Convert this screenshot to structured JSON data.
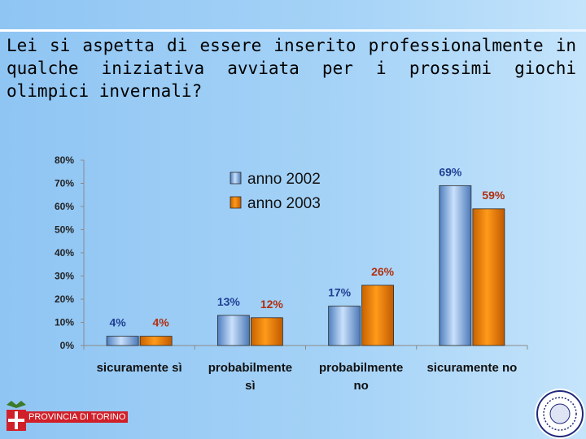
{
  "slide": {
    "question": "Lei si aspetta di essere inserito professionalmente in qualche iniziativa avviata per i prossimi giochi olimpici invernali?"
  },
  "logo": {
    "left_text": "PROVINCIA DI TORINO"
  },
  "colors": {
    "series_2002": "#6f9fd6",
    "series_2003": "#e98500",
    "label_2002": "#1f3f93",
    "label_2003": "#b03010"
  },
  "chart_data": {
    "type": "bar",
    "categories": [
      "sicuramente sì",
      "probabilmente sì",
      "probabilmente no",
      "sicuramente no"
    ],
    "series": [
      {
        "name": "anno 2002",
        "values": [
          4,
          13,
          17,
          69
        ]
      },
      {
        "name": "anno 2003",
        "values": [
          4,
          12,
          26,
          59
        ]
      }
    ],
    "data_labels": [
      [
        "4%",
        "13%",
        "17%",
        "69%"
      ],
      [
        "4%",
        "12%",
        "26%",
        "59%"
      ]
    ],
    "yticks": [
      "0%",
      "10%",
      "20%",
      "30%",
      "40%",
      "50%",
      "60%",
      "70%",
      "80%"
    ],
    "ylim": [
      0,
      80
    ],
    "legend_position": "top-center",
    "grid": false
  }
}
